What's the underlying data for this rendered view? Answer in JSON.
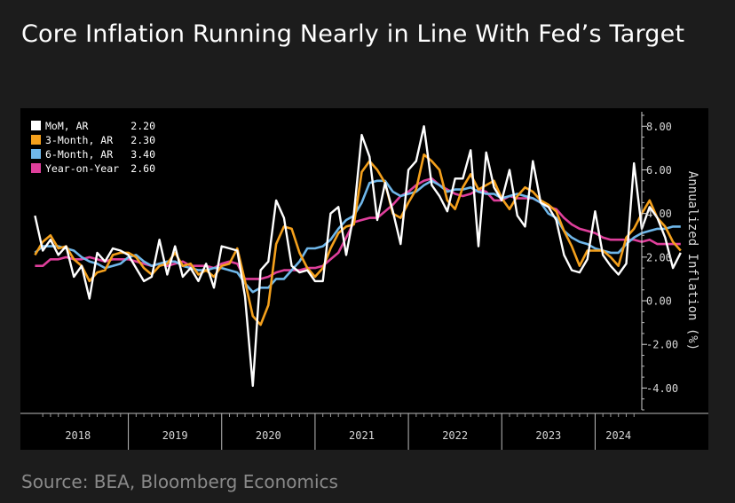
{
  "title": "Core Inflation Running Nearly in Line With Fed’s Target",
  "source": "Source: BEA, Bloomberg Economics",
  "chart_data": {
    "type": "line",
    "ylabel": "Annualized Inflation (%)",
    "ylim": [
      -5,
      8.5
    ],
    "yticks": [
      8,
      6,
      4,
      2,
      0,
      -2,
      -4
    ],
    "ytick_labels": [
      "8.00",
      "6.00",
      "4.00",
      "2.00",
      "0.00",
      "-2.00",
      "-4.00"
    ],
    "xlim": [
      2017.92,
      2024.5
    ],
    "xbands": [
      {
        "label": "2018",
        "start": 2017.92,
        "end": 2019.0
      },
      {
        "label": "2019",
        "start": 2019.0,
        "end": 2020.0
      },
      {
        "label": "2020",
        "start": 2020.0,
        "end": 2021.0
      },
      {
        "label": "2021",
        "start": 2021.0,
        "end": 2022.0
      },
      {
        "label": "2022",
        "start": 2022.0,
        "end": 2023.0
      },
      {
        "label": "2023",
        "start": 2023.0,
        "end": 2024.0
      },
      {
        "label": "2024",
        "start": 2024.0,
        "end": 2024.5
      }
    ],
    "grid": false,
    "legend_position": "top-left",
    "start": [
      2018,
      1
    ],
    "series": [
      {
        "name": "MoM, AR",
        "label_value": "2.20",
        "color": "#ffffff",
        "values": [
          3.9,
          2.3,
          2.8,
          2.1,
          2.5,
          1.1,
          1.6,
          0.1,
          2.2,
          1.8,
          2.4,
          2.3,
          2.1,
          1.5,
          0.9,
          1.1,
          2.8,
          1.2,
          2.5,
          1.1,
          1.5,
          0.9,
          1.7,
          0.6,
          2.5,
          2.4,
          2.3,
          0.2,
          -3.9,
          1.4,
          1.8,
          4.6,
          3.8,
          1.6,
          1.3,
          1.4,
          0.9,
          0.9,
          4.0,
          4.3,
          2.1,
          4.0,
          7.6,
          6.6,
          3.7,
          5.4,
          4.1,
          2.6,
          6.0,
          6.4,
          8.0,
          5.3,
          4.8,
          4.1,
          5.6,
          5.6,
          6.9,
          2.5,
          6.8,
          5.2,
          4.6,
          6.0,
          3.9,
          3.4,
          6.4,
          4.5,
          4.3,
          3.7,
          2.1,
          1.4,
          1.3,
          1.9,
          4.1,
          2.1,
          1.6,
          1.2,
          1.7,
          6.3,
          3.3,
          4.3,
          3.8,
          2.9,
          1.5,
          2.2
        ]
      },
      {
        "name": "3-Month, AR",
        "label_value": "2.30",
        "color": "#f4a01c",
        "values": [
          2.1,
          2.7,
          3.0,
          2.4,
          2.5,
          1.9,
          1.6,
          0.9,
          1.3,
          1.4,
          2.1,
          2.2,
          2.2,
          2.0,
          1.5,
          1.2,
          1.6,
          1.7,
          2.2,
          1.6,
          1.7,
          1.2,
          1.4,
          1.1,
          1.6,
          1.7,
          2.4,
          0.9,
          -0.7,
          -1.1,
          -0.2,
          2.6,
          3.4,
          3.3,
          2.2,
          1.5,
          1.1,
          1.5,
          2.4,
          3.1,
          3.4,
          3.5,
          5.9,
          6.4,
          6.0,
          5.4,
          4.0,
          3.8,
          4.5,
          5.1,
          6.7,
          6.4,
          6.0,
          4.6,
          4.2,
          5.2,
          5.8,
          5.1,
          5.3,
          5.5,
          4.7,
          4.2,
          4.8,
          5.2,
          5.0,
          4.6,
          4.4,
          4.1,
          3.2,
          2.5,
          1.6,
          2.3,
          2.3,
          2.3,
          2.0,
          1.6,
          2.9,
          3.3,
          4.0,
          4.6,
          3.8,
          3.4,
          2.7,
          2.3
        ]
      },
      {
        "name": "6-Month, AR",
        "label_value": "3.40",
        "color": "#6fb7ea",
        "values": [
          2.2,
          2.5,
          2.5,
          2.5,
          2.4,
          2.3,
          2.0,
          1.8,
          1.7,
          1.5,
          1.6,
          1.7,
          2.0,
          2.1,
          1.8,
          1.6,
          1.7,
          1.8,
          1.8,
          1.6,
          1.5,
          1.4,
          1.4,
          1.5,
          1.5,
          1.4,
          1.3,
          0.8,
          0.4,
          0.6,
          0.6,
          1.0,
          1.0,
          1.4,
          1.8,
          2.4,
          2.4,
          2.5,
          2.8,
          3.3,
          3.7,
          3.9,
          4.5,
          5.4,
          5.5,
          5.5,
          5.0,
          4.8,
          4.9,
          5.0,
          5.3,
          5.5,
          5.3,
          5.0,
          5.1,
          5.1,
          5.2,
          5.0,
          4.9,
          4.9,
          4.7,
          4.8,
          4.9,
          4.8,
          4.7,
          4.5,
          4.0,
          3.8,
          3.2,
          2.9,
          2.7,
          2.6,
          2.4,
          2.3,
          2.2,
          2.2,
          2.6,
          2.9,
          3.1,
          3.2,
          3.3,
          3.3,
          3.4,
          3.4
        ]
      },
      {
        "name": "Year-on-Year",
        "label_value": "2.60",
        "color": "#df3f9b",
        "values": [
          1.6,
          1.6,
          1.9,
          1.9,
          2.0,
          1.9,
          1.9,
          2.0,
          1.9,
          1.8,
          1.9,
          1.9,
          1.9,
          1.8,
          1.7,
          1.6,
          1.7,
          1.6,
          1.7,
          1.8,
          1.6,
          1.6,
          1.6,
          1.5,
          1.7,
          1.8,
          1.7,
          1.0,
          1.0,
          1.0,
          1.1,
          1.3,
          1.4,
          1.4,
          1.4,
          1.5,
          1.5,
          1.6,
          1.9,
          2.2,
          2.9,
          3.6,
          3.7,
          3.8,
          3.8,
          4.1,
          4.4,
          4.8,
          5.0,
          5.3,
          5.5,
          5.6,
          5.3,
          5.1,
          4.9,
          4.8,
          4.9,
          5.1,
          5.0,
          4.6,
          4.6,
          4.8,
          4.7,
          4.7,
          4.7,
          4.5,
          4.3,
          4.2,
          3.8,
          3.5,
          3.3,
          3.2,
          3.1,
          2.9,
          2.8,
          2.8,
          2.8,
          2.8,
          2.7,
          2.8,
          2.6,
          2.6,
          2.6,
          2.6
        ]
      }
    ]
  }
}
